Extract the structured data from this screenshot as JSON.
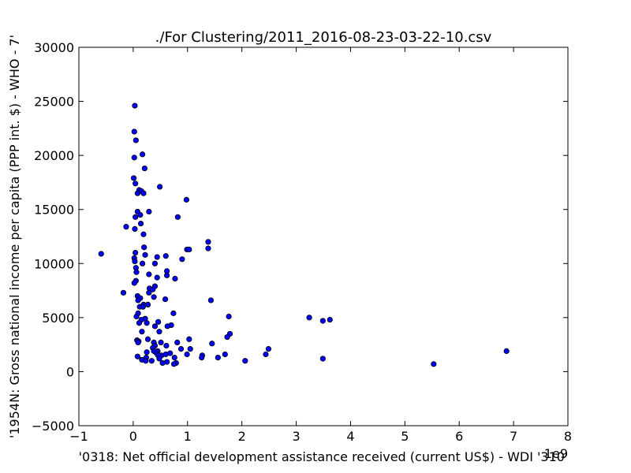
{
  "chart_data": {
    "type": "scatter",
    "title": "./For Clustering/2011_2016-08-23-03-22-10.csv",
    "xlabel": "'0318: Net official development assistance received  (current US$) - WDI '310'",
    "ylabel": "'1954N: Gross national income per capita (PPP int. $) - WHO - 7'",
    "x_offset_label": "1e9",
    "xlim": [
      -1,
      8
    ],
    "ylim": [
      -5000,
      30000
    ],
    "x_ticks": [
      "−1",
      "0",
      "1",
      "2",
      "3",
      "4",
      "5",
      "6",
      "7",
      "8"
    ],
    "y_ticks": [
      "−5000",
      "0",
      "5000",
      "10000",
      "15000",
      "20000",
      "25000",
      "30000"
    ],
    "x_tick_values": [
      -1,
      0,
      1,
      2,
      3,
      4,
      5,
      6,
      7,
      8
    ],
    "y_tick_values": [
      -5000,
      0,
      5000,
      10000,
      15000,
      20000,
      25000,
      30000
    ],
    "grid": false,
    "marker_color": "#0000ff",
    "series": [
      {
        "points": [
          [
            0.03,
            24600
          ],
          [
            0.02,
            22200
          ],
          [
            0.05,
            21400
          ],
          [
            0.17,
            20100
          ],
          [
            0.02,
            19800
          ],
          [
            0.21,
            18800
          ],
          [
            0.01,
            17900
          ],
          [
            0.04,
            17400
          ],
          [
            0.49,
            17100
          ],
          [
            0.11,
            16800
          ],
          [
            0.15,
            16700
          ],
          [
            0.08,
            16500
          ],
          [
            0.19,
            16500
          ],
          [
            0.98,
            15900
          ],
          [
            0.08,
            14800
          ],
          [
            0.29,
            14800
          ],
          [
            0.13,
            14500
          ],
          [
            0.04,
            14300
          ],
          [
            0.82,
            14300
          ],
          [
            0.14,
            13700
          ],
          [
            -0.13,
            13400
          ],
          [
            0.03,
            13200
          ],
          [
            0.19,
            12700
          ],
          [
            1.38,
            12000
          ],
          [
            0.2,
            11500
          ],
          [
            0.99,
            11300
          ],
          [
            1.03,
            11300
          ],
          [
            1.38,
            11400
          ],
          [
            0.04,
            11000
          ],
          [
            -0.59,
            10900
          ],
          [
            0.22,
            10800
          ],
          [
            0.6,
            10700
          ],
          [
            0.44,
            10600
          ],
          [
            0.02,
            10500
          ],
          [
            0.9,
            10400
          ],
          [
            0.03,
            10200
          ],
          [
            0.17,
            10000
          ],
          [
            0.4,
            10000
          ],
          [
            0.05,
            9600
          ],
          [
            0.62,
            9300
          ],
          [
            0.06,
            9200
          ],
          [
            0.29,
            9000
          ],
          [
            0.62,
            8900
          ],
          [
            0.44,
            8700
          ],
          [
            0.77,
            8600
          ],
          [
            0.05,
            8400
          ],
          [
            0.02,
            8200
          ],
          [
            0.4,
            7900
          ],
          [
            0.3,
            7700
          ],
          [
            0.36,
            7600
          ],
          [
            0.29,
            7300
          ],
          [
            -0.18,
            7300
          ],
          [
            0.08,
            7000
          ],
          [
            0.38,
            6900
          ],
          [
            0.13,
            6800
          ],
          [
            0.59,
            6700
          ],
          [
            1.43,
            6600
          ],
          [
            0.09,
            6600
          ],
          [
            0.27,
            6200
          ],
          [
            0.19,
            6200
          ],
          [
            0.12,
            6000
          ],
          [
            0.18,
            6000
          ],
          [
            0.74,
            5400
          ],
          [
            0.09,
            5400
          ],
          [
            0.06,
            5100
          ],
          [
            1.76,
            5100
          ],
          [
            3.24,
            5000
          ],
          [
            0.22,
            4900
          ],
          [
            0.15,
            4800
          ],
          [
            3.49,
            4700
          ],
          [
            3.62,
            4800
          ],
          [
            0.46,
            4600
          ],
          [
            0.25,
            4500
          ],
          [
            0.11,
            4500
          ],
          [
            0.7,
            4300
          ],
          [
            0.63,
            4200
          ],
          [
            0.4,
            4200
          ],
          [
            0.48,
            3700
          ],
          [
            0.16,
            3700
          ],
          [
            1.78,
            3500
          ],
          [
            1.73,
            3200
          ],
          [
            1.03,
            3000
          ],
          [
            0.27,
            3000
          ],
          [
            0.07,
            2900
          ],
          [
            0.1,
            2800
          ],
          [
            0.09,
            2700
          ],
          [
            0.81,
            2700
          ],
          [
            0.38,
            2700
          ],
          [
            0.51,
            2700
          ],
          [
            1.45,
            2600
          ],
          [
            0.61,
            2400
          ],
          [
            0.4,
            2400
          ],
          [
            0.36,
            2200
          ],
          [
            0.88,
            2100
          ],
          [
            1.05,
            2100
          ],
          [
            2.49,
            2100
          ],
          [
            0.45,
            1900
          ],
          [
            0.38,
            1900
          ],
          [
            6.87,
            1900
          ],
          [
            0.25,
            1800
          ],
          [
            0.43,
            1700
          ],
          [
            0.68,
            1700
          ],
          [
            0.99,
            1600
          ],
          [
            0.6,
            1600
          ],
          [
            2.44,
            1600
          ],
          [
            0.52,
            1500
          ],
          [
            1.27,
            1500
          ],
          [
            1.69,
            1600
          ],
          [
            0.46,
            1500
          ],
          [
            0.08,
            1400
          ],
          [
            0.24,
            1300
          ],
          [
            0.76,
            1300
          ],
          [
            1.56,
            1300
          ],
          [
            3.49,
            1200
          ],
          [
            0.16,
            1100
          ],
          [
            1.26,
            1300
          ],
          [
            0.23,
            1000
          ],
          [
            0.34,
            1000
          ],
          [
            2.06,
            1000
          ],
          [
            0.62,
            900
          ],
          [
            0.54,
            800
          ],
          [
            0.48,
            1200
          ],
          [
            0.79,
            800
          ],
          [
            0.75,
            700
          ],
          [
            5.53,
            700
          ]
        ]
      }
    ]
  }
}
